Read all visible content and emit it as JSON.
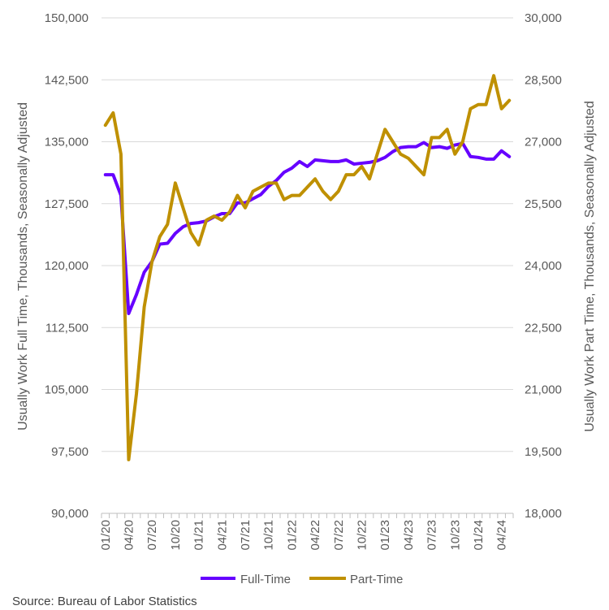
{
  "chart_data": {
    "type": "line",
    "title": "",
    "source": "Source: Bureau of Labor Statistics",
    "y_left": {
      "label": "Usually Work Full Time, Thousands, Seasonally Adjusted",
      "min": 90000,
      "max": 150000,
      "ticks": [
        90000,
        97500,
        105000,
        112500,
        120000,
        127500,
        135000,
        142500,
        150000
      ],
      "tick_labels": [
        "90,000",
        "97,500",
        "105,000",
        "112,500",
        "120,000",
        "127,500",
        "135,000",
        "142,500",
        "150,000"
      ]
    },
    "y_right": {
      "label": "Usually Work Part Time, Thousands, Seasonally Adjusted",
      "min": 18000,
      "max": 30000,
      "ticks": [
        18000,
        19500,
        21000,
        22500,
        24000,
        25500,
        27000,
        28500,
        30000
      ],
      "tick_labels": [
        "18,000",
        "19,500",
        "21,000",
        "22,500",
        "24,000",
        "25,500",
        "27,000",
        "28,500",
        "30,000"
      ]
    },
    "x_tick_labels": [
      "01/20",
      "04/20",
      "07/20",
      "10/20",
      "01/21",
      "04/21",
      "07/21",
      "10/21",
      "01/22",
      "04/22",
      "07/22",
      "10/22",
      "01/23",
      "04/23",
      "07/23",
      "10/23",
      "01/24",
      "04/24"
    ],
    "x": [
      "01/20",
      "02/20",
      "03/20",
      "04/20",
      "05/20",
      "06/20",
      "07/20",
      "08/20",
      "09/20",
      "10/20",
      "11/20",
      "12/20",
      "01/21",
      "02/21",
      "03/21",
      "04/21",
      "05/21",
      "06/21",
      "07/21",
      "08/21",
      "09/21",
      "10/21",
      "11/21",
      "12/21",
      "01/22",
      "02/22",
      "03/22",
      "04/22",
      "05/22",
      "06/22",
      "07/22",
      "08/22",
      "09/22",
      "10/22",
      "11/22",
      "12/22",
      "01/23",
      "02/23",
      "03/23",
      "04/23",
      "05/23",
      "06/23",
      "07/23",
      "08/23",
      "09/23",
      "10/23",
      "11/23",
      "12/23",
      "01/24",
      "02/24",
      "03/24",
      "04/24",
      "05/24"
    ],
    "grid": true,
    "legend_position": "bottom",
    "series": [
      {
        "name": "Full-Time",
        "axis": "left",
        "color": "#6600ff",
        "values": [
          131000,
          131000,
          128500,
          114200,
          116500,
          119200,
          120500,
          122600,
          122700,
          123900,
          124700,
          125100,
          125200,
          125400,
          125900,
          126300,
          126300,
          127600,
          127600,
          128100,
          128600,
          129600,
          130300,
          131300,
          131800,
          132600,
          132000,
          132800,
          132700,
          132600,
          132600,
          132800,
          132300,
          132400,
          132500,
          132700,
          133100,
          133800,
          134300,
          134400,
          134400,
          134900,
          134300,
          134400,
          134200,
          134600,
          134800,
          133200,
          133100,
          132900,
          132900,
          133900,
          133200
        ]
      },
      {
        "name": "Part-Time",
        "axis": "right",
        "color": "#bf9000",
        "values": [
          27400,
          27700,
          26700,
          19300,
          20900,
          23000,
          24100,
          24700,
          25000,
          26000,
          25400,
          24800,
          24500,
          25100,
          25200,
          25100,
          25300,
          25700,
          25400,
          25800,
          25900,
          26000,
          26000,
          25600,
          25700,
          25700,
          25900,
          26100,
          25800,
          25600,
          25800,
          26200,
          26200,
          26400,
          26100,
          26700,
          27300,
          27000,
          26700,
          26600,
          26400,
          26200,
          27100,
          27100,
          27300,
          26700,
          27000,
          27800,
          27900,
          27900,
          28600,
          27800,
          28000
        ]
      }
    ]
  }
}
